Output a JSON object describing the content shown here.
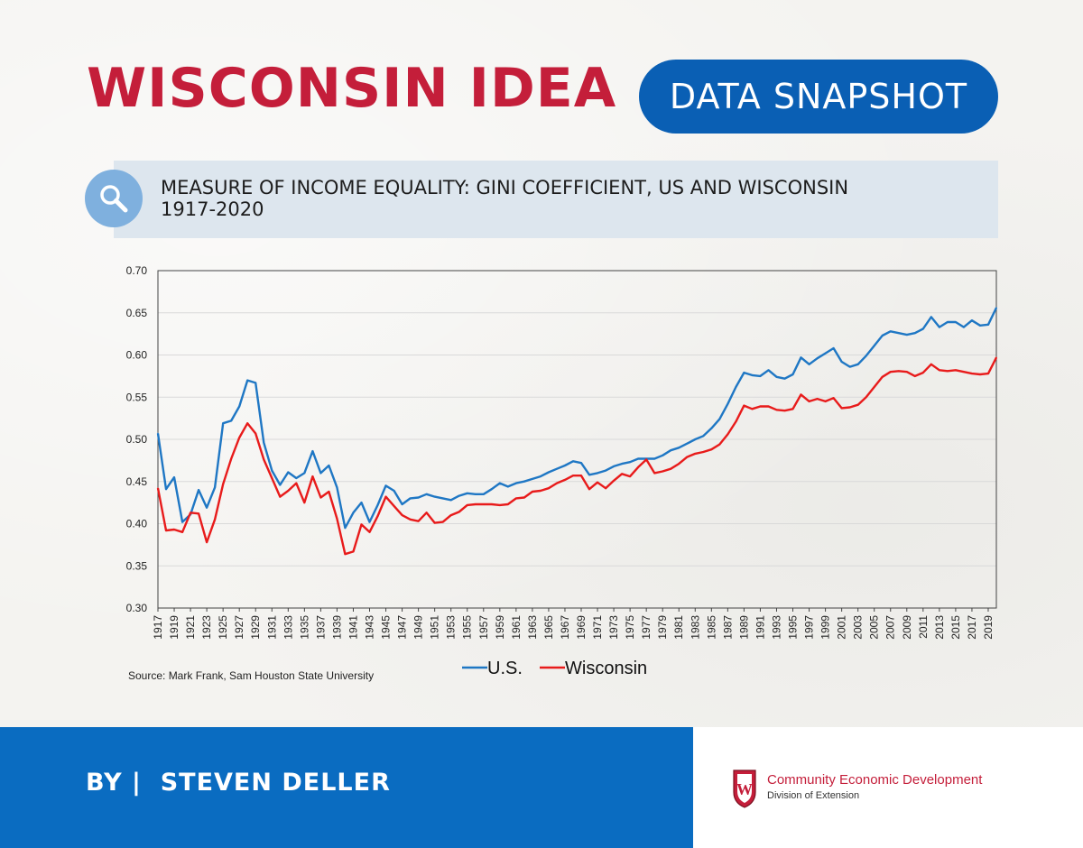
{
  "header": {
    "brand": "WISCONSIN IDEA",
    "pill_label": "DATA SNAPSHOT",
    "subtitle": " MEASURE OF INCOME EQUALITY: GINI COEFFICIENT, US AND WISCONSIN\n1917-2020",
    "search_icon": "search-icon"
  },
  "footer": {
    "byline": "BY |  STEVEN DELLER",
    "org_name": "Community Economic Development",
    "org_sub": "Division of Extension",
    "crest_icon": "uw-crest-icon"
  },
  "colors": {
    "brand_red": "#c41e3a",
    "brand_blue": "#0a5fb4",
    "us_line": "#1f77c4",
    "wi_line": "#e81b1b"
  },
  "chart_data": {
    "type": "line",
    "title": "",
    "xlabel": "",
    "ylabel": "",
    "ylim": [
      0.3,
      0.7
    ],
    "yticks": [
      "0.30",
      "0.35",
      "0.40",
      "0.45",
      "0.50",
      "0.55",
      "0.60",
      "0.65",
      "0.70"
    ],
    "xticks": [
      "1917",
      "1919",
      "1921",
      "1923",
      "1925",
      "1927",
      "1929",
      "1931",
      "1933",
      "1935",
      "1937",
      "1939",
      "1941",
      "1943",
      "1945",
      "1947",
      "1949",
      "1951",
      "1953",
      "1955",
      "1957",
      "1959",
      "1961",
      "1963",
      "1965",
      "1967",
      "1969",
      "1971",
      "1973",
      "1975",
      "1977",
      "1979",
      "1981",
      "1983",
      "1985",
      "1987",
      "1989",
      "1991",
      "1993",
      "1995",
      "1997",
      "1999",
      "2001",
      "2003",
      "2005",
      "2007",
      "2009",
      "2011",
      "2013",
      "2015",
      "2017",
      "2019"
    ],
    "x": [
      1917,
      1918,
      1919,
      1920,
      1921,
      1922,
      1923,
      1924,
      1925,
      1926,
      1927,
      1928,
      1929,
      1930,
      1931,
      1932,
      1933,
      1934,
      1935,
      1936,
      1937,
      1938,
      1939,
      1940,
      1941,
      1942,
      1943,
      1944,
      1945,
      1946,
      1947,
      1948,
      1949,
      1950,
      1951,
      1952,
      1953,
      1954,
      1955,
      1956,
      1957,
      1958,
      1959,
      1960,
      1961,
      1962,
      1963,
      1964,
      1965,
      1966,
      1967,
      1968,
      1969,
      1970,
      1971,
      1972,
      1973,
      1974,
      1975,
      1976,
      1977,
      1978,
      1979,
      1980,
      1981,
      1982,
      1983,
      1984,
      1985,
      1986,
      1987,
      1988,
      1989,
      1990,
      1991,
      1992,
      1993,
      1994,
      1995,
      1996,
      1997,
      1998,
      1999,
      2000,
      2001,
      2002,
      2003,
      2004,
      2005,
      2006,
      2007,
      2008,
      2009,
      2010,
      2011,
      2012,
      2013,
      2014,
      2015,
      2016,
      2017,
      2018,
      2019,
      2020
    ],
    "series": [
      {
        "name": "U.S.",
        "values": [
          0.507,
          0.441,
          0.455,
          0.402,
          0.411,
          0.44,
          0.419,
          0.443,
          0.519,
          0.522,
          0.539,
          0.57,
          0.567,
          0.496,
          0.463,
          0.446,
          0.461,
          0.454,
          0.46,
          0.486,
          0.46,
          0.469,
          0.443,
          0.395,
          0.413,
          0.425,
          0.402,
          0.422,
          0.445,
          0.439,
          0.423,
          0.43,
          0.431,
          0.435,
          0.432,
          0.43,
          0.428,
          0.433,
          0.436,
          0.435,
          0.435,
          0.441,
          0.448,
          0.444,
          0.448,
          0.45,
          0.453,
          0.456,
          0.461,
          0.465,
          0.469,
          0.474,
          0.472,
          0.458,
          0.46,
          0.463,
          0.468,
          0.471,
          0.473,
          0.477,
          0.477,
          0.477,
          0.481,
          0.487,
          0.49,
          0.495,
          0.5,
          0.504,
          0.513,
          0.524,
          0.542,
          0.562,
          0.579,
          0.576,
          0.575,
          0.582,
          0.574,
          0.572,
          0.577,
          0.597,
          0.589,
          0.596,
          0.602,
          0.608,
          0.592,
          0.586,
          0.589,
          0.599,
          0.611,
          0.623,
          0.628,
          0.626,
          0.624,
          0.626,
          0.631,
          0.645,
          0.633,
          0.639,
          0.639,
          0.633,
          0.641,
          0.635,
          0.636,
          0.656
        ]
      },
      {
        "name": "Wisconsin",
        "values": [
          0.442,
          0.392,
          0.393,
          0.39,
          0.413,
          0.412,
          0.378,
          0.405,
          0.447,
          0.477,
          0.502,
          0.519,
          0.507,
          0.476,
          0.454,
          0.432,
          0.439,
          0.448,
          0.425,
          0.456,
          0.431,
          0.438,
          0.406,
          0.364,
          0.367,
          0.399,
          0.39,
          0.409,
          0.432,
          0.421,
          0.41,
          0.405,
          0.403,
          0.413,
          0.401,
          0.402,
          0.41,
          0.414,
          0.422,
          0.423,
          0.423,
          0.423,
          0.422,
          0.423,
          0.43,
          0.431,
          0.438,
          0.439,
          0.442,
          0.448,
          0.452,
          0.457,
          0.457,
          0.441,
          0.449,
          0.442,
          0.451,
          0.459,
          0.456,
          0.467,
          0.476,
          0.46,
          0.462,
          0.465,
          0.471,
          0.479,
          0.483,
          0.485,
          0.488,
          0.494,
          0.506,
          0.521,
          0.54,
          0.536,
          0.539,
          0.539,
          0.535,
          0.534,
          0.536,
          0.553,
          0.545,
          0.548,
          0.545,
          0.549,
          0.537,
          0.538,
          0.541,
          0.55,
          0.562,
          0.574,
          0.58,
          0.581,
          0.58,
          0.575,
          0.579,
          0.589,
          0.582,
          0.581,
          0.582,
          0.58,
          0.578,
          0.577,
          0.578,
          0.597
        ]
      }
    ],
    "legend_position": "bottom-center",
    "source": "Source: Mark Frank, Sam Houston State University",
    "grid": "horizontal"
  }
}
